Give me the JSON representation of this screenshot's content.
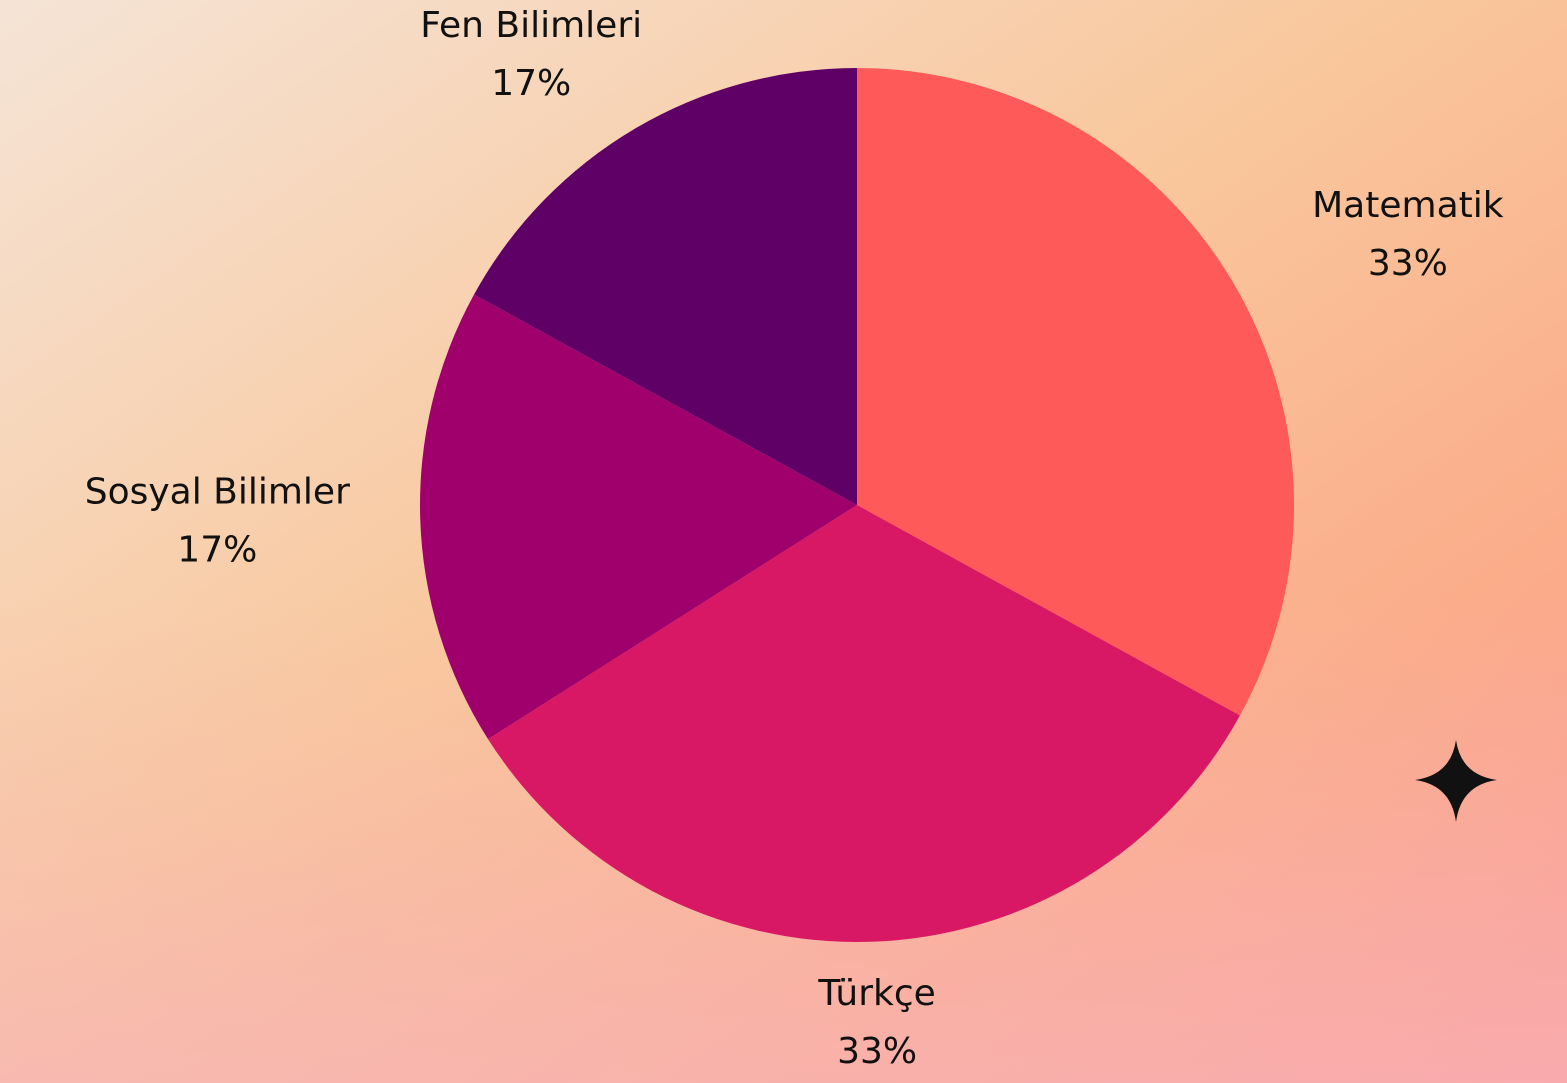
{
  "chart_data": {
    "type": "pie",
    "categories": [
      "Matematik",
      "Türkçe",
      "Sosyal Bilimler",
      "Fen Bilimleri"
    ],
    "values": [
      33,
      33,
      17,
      17
    ],
    "value_labels": [
      "33%",
      "33%",
      "17%",
      "17%"
    ],
    "colors": [
      "#ff5a5a",
      "#d81864",
      "#a0006c",
      "#5e0066"
    ]
  }
}
